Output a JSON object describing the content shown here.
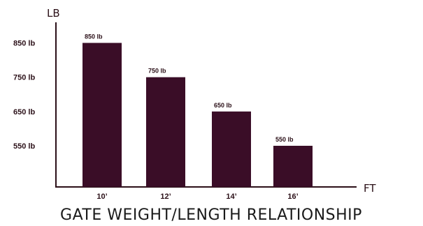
{
  "chart_data": {
    "type": "bar",
    "title": "GATE WEIGHT/LENGTH RELATIONSHIP",
    "xlabel": "FT",
    "ylabel": "LB",
    "categories": [
      "10’",
      "12’",
      "14’",
      "16’"
    ],
    "values": [
      850,
      750,
      650,
      550
    ],
    "value_labels": [
      "850 lb",
      "750 lb",
      "650 lb",
      "550 lb"
    ],
    "y_ticks": [
      {
        "value": 850,
        "label": "850 lb"
      },
      {
        "value": 750,
        "label": "750 lb"
      },
      {
        "value": 650,
        "label": "650 lb"
      },
      {
        "value": 550,
        "label": "550 lb"
      }
    ],
    "ylim": [
      430,
      910
    ],
    "grid": false,
    "bar_color": "#3a0d27",
    "axis_color": "#2b1018"
  }
}
